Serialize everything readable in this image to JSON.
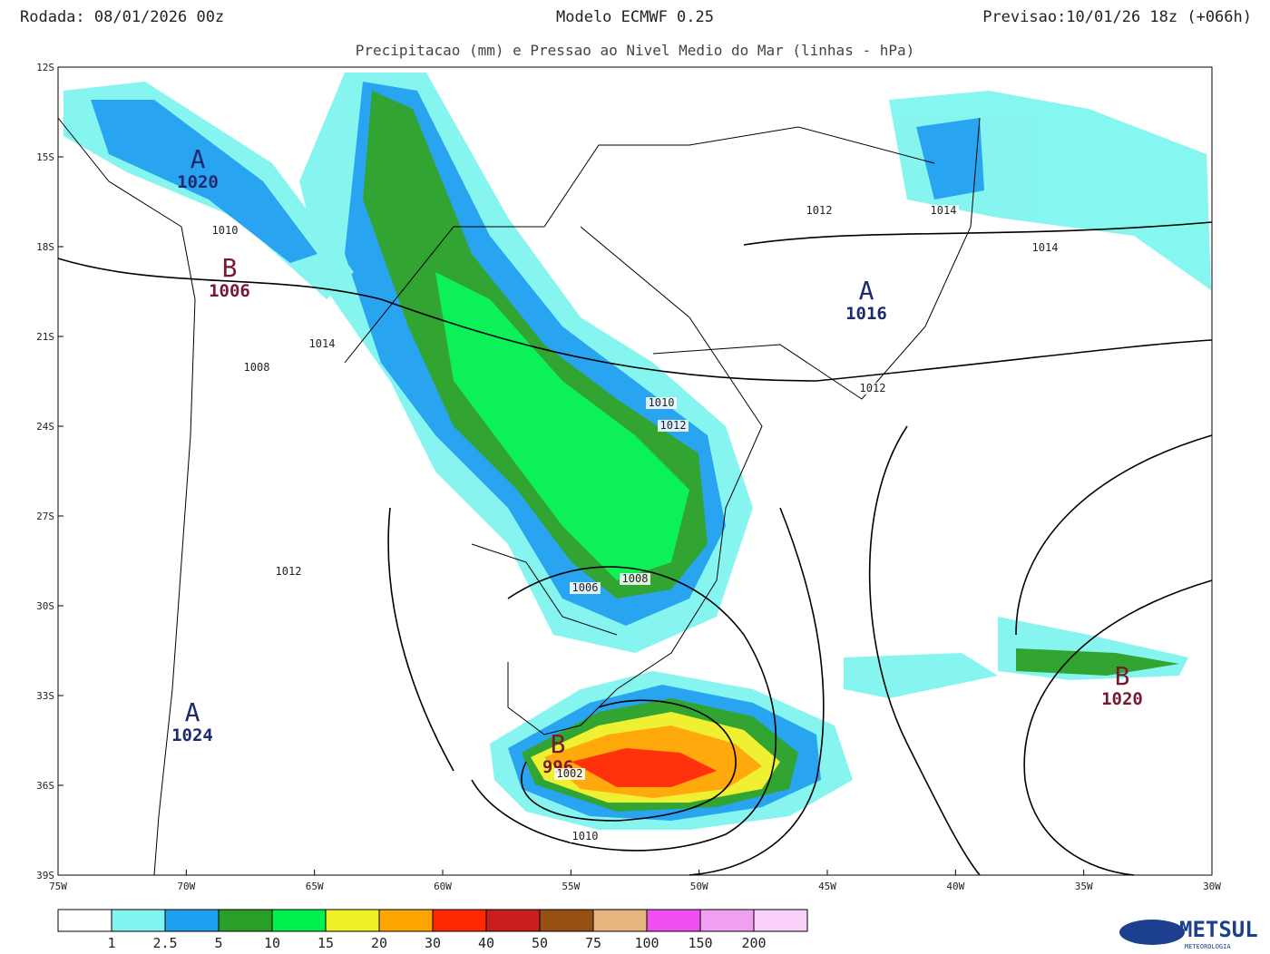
{
  "header": {
    "left": "Rodada: 08/01/2026 00z",
    "center": "Modelo ECMWF 0.25",
    "right": "Previsao:10/01/26 18z (+066h)",
    "subtitle": "Precipitacao (mm) e Pressao ao Nivel Medio do Mar (linhas - hPa)"
  },
  "map": {
    "lat_labels": [
      "12S",
      "15S",
      "18S",
      "21S",
      "24S",
      "27S",
      "30S",
      "33S",
      "36S",
      "39S"
    ],
    "lon_labels": [
      "75W",
      "70W",
      "65W",
      "60W",
      "55W",
      "50W",
      "45W",
      "40W",
      "35W",
      "30W"
    ],
    "centers": [
      {
        "letter": "A",
        "value": "1020"
      },
      {
        "letter": "B",
        "value": "1006"
      },
      {
        "letter": "A",
        "value": "1016"
      },
      {
        "letter": "A",
        "value": "1024"
      },
      {
        "letter": "B",
        "value": "996"
      },
      {
        "letter": "B",
        "value": "1020"
      }
    ],
    "isobar_labels": [
      "1010",
      "1014",
      "1008",
      "1012",
      "1012",
      "1014",
      "1014",
      "1012",
      "1010",
      "1012",
      "1006",
      "1008",
      "1002",
      "1010"
    ]
  },
  "legend": {
    "colors": [
      "#ffffff",
      "#80f5f0",
      "#1ea0f0",
      "#28a028",
      "#00f050",
      "#f0f028",
      "#ffa500",
      "#ff2800",
      "#c81e1e",
      "#965014",
      "#e6b47f",
      "#f050f0",
      "#f0a0f0",
      "#f8d0f8"
    ],
    "labels": [
      "1",
      "2.5",
      "5",
      "10",
      "15",
      "20",
      "30",
      "40",
      "50",
      "75",
      "100",
      "150",
      "200"
    ]
  },
  "logo": {
    "name": "METSUL",
    "tagline": "METEOROLOGIA"
  }
}
